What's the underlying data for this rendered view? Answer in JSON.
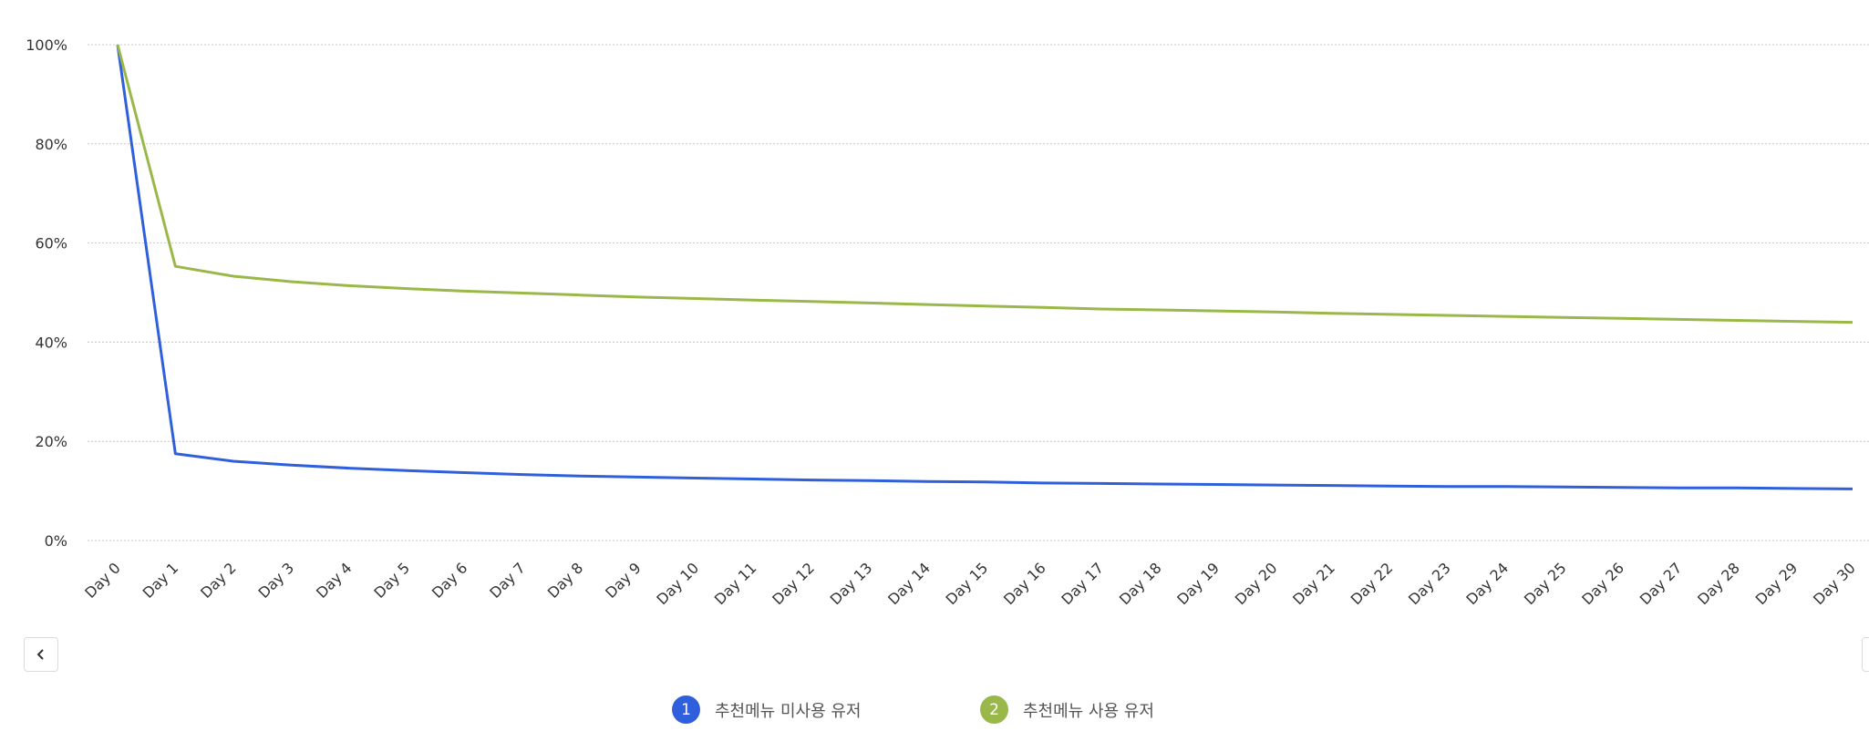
{
  "chart_data": {
    "type": "line",
    "title": "",
    "xlabel": "",
    "ylabel": "",
    "ylim": [
      0,
      100
    ],
    "y_ticks": [
      "0%",
      "20%",
      "40%",
      "60%",
      "80%",
      "100%"
    ],
    "y_tick_values": [
      0,
      20,
      40,
      60,
      80,
      100
    ],
    "grid": "horizontal dotted",
    "legend_position": "bottom-center",
    "categories": [
      "Day 0",
      "Day 1",
      "Day 2",
      "Day 3",
      "Day 4",
      "Day 5",
      "Day 6",
      "Day 7",
      "Day 8",
      "Day 9",
      "Day 10",
      "Day 11",
      "Day 12",
      "Day 13",
      "Day 14",
      "Day 15",
      "Day 16",
      "Day 17",
      "Day 18",
      "Day 19",
      "Day 20",
      "Day 21",
      "Day 22",
      "Day 23",
      "Day 24",
      "Day 25",
      "Day 26",
      "Day 27",
      "Day 28",
      "Day 29",
      "Day 30"
    ],
    "series": [
      {
        "name": "추천메뉴 미사용 유저",
        "badge": "1",
        "color": "#2f5fdc",
        "values": [
          100,
          17.5,
          16.0,
          15.2,
          14.6,
          14.1,
          13.7,
          13.3,
          13.0,
          12.8,
          12.6,
          12.4,
          12.2,
          12.1,
          11.9,
          11.8,
          11.6,
          11.5,
          11.4,
          11.3,
          11.2,
          11.1,
          11.0,
          10.9,
          10.9,
          10.8,
          10.7,
          10.6,
          10.6,
          10.5,
          10.4
        ]
      },
      {
        "name": "추천메뉴 사용 유저",
        "badge": "2",
        "color": "#9ab84a",
        "values": [
          100,
          55.3,
          53.3,
          52.2,
          51.4,
          50.8,
          50.3,
          49.9,
          49.5,
          49.1,
          48.8,
          48.5,
          48.2,
          47.9,
          47.6,
          47.3,
          47.0,
          46.7,
          46.5,
          46.3,
          46.1,
          45.8,
          45.6,
          45.4,
          45.2,
          45.0,
          44.8,
          44.6,
          44.4,
          44.2,
          44.0
        ]
      }
    ]
  },
  "nav": {
    "prev_icon": "chevron-left-icon",
    "prev_symbol": "‹"
  }
}
